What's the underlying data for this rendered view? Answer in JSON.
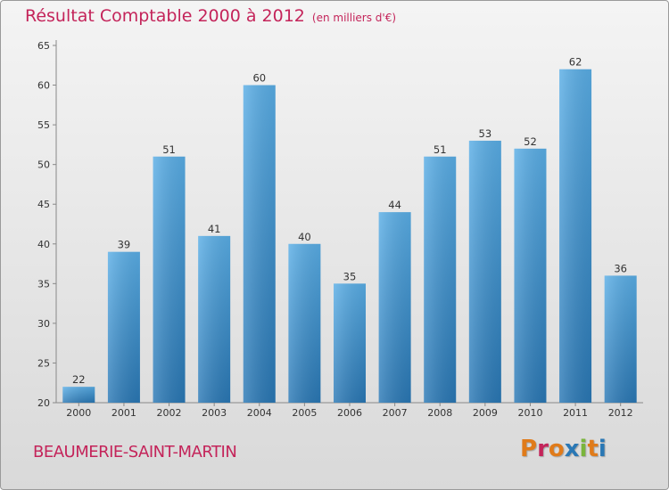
{
  "header": {
    "title": "Résultat Comptable 2000 à 2012",
    "subtitle": "(en milliers d'€)"
  },
  "footer": {
    "commune": "BEAUMERIE-SAINT-MARTIN",
    "logo": "Proxiti"
  },
  "colors": {
    "title": "#c4245a",
    "bar_light": "#5aaee6",
    "bar_dark": "#2a78b5",
    "logo_letters": [
      "#e07b1a",
      "#c4245a",
      "#e07b1a",
      "#2a78b5",
      "#7ab53c",
      "#e07b1a",
      "#2a78b5"
    ]
  },
  "chart_data": {
    "type": "bar",
    "title": "Résultat Comptable 2000 à 2012",
    "subtitle": "(en milliers d'€)",
    "xlabel": "",
    "ylabel": "",
    "categories": [
      "2000",
      "2001",
      "2002",
      "2003",
      "2004",
      "2005",
      "2006",
      "2007",
      "2008",
      "2009",
      "2010",
      "2011",
      "2012"
    ],
    "values": [
      22,
      39,
      51,
      41,
      60,
      40,
      35,
      44,
      51,
      53,
      52,
      62,
      36
    ],
    "ylim": [
      20,
      65
    ],
    "yticks": [
      20,
      25,
      30,
      35,
      40,
      45,
      50,
      55,
      60,
      65
    ],
    "grid": false,
    "data_labels": true
  }
}
